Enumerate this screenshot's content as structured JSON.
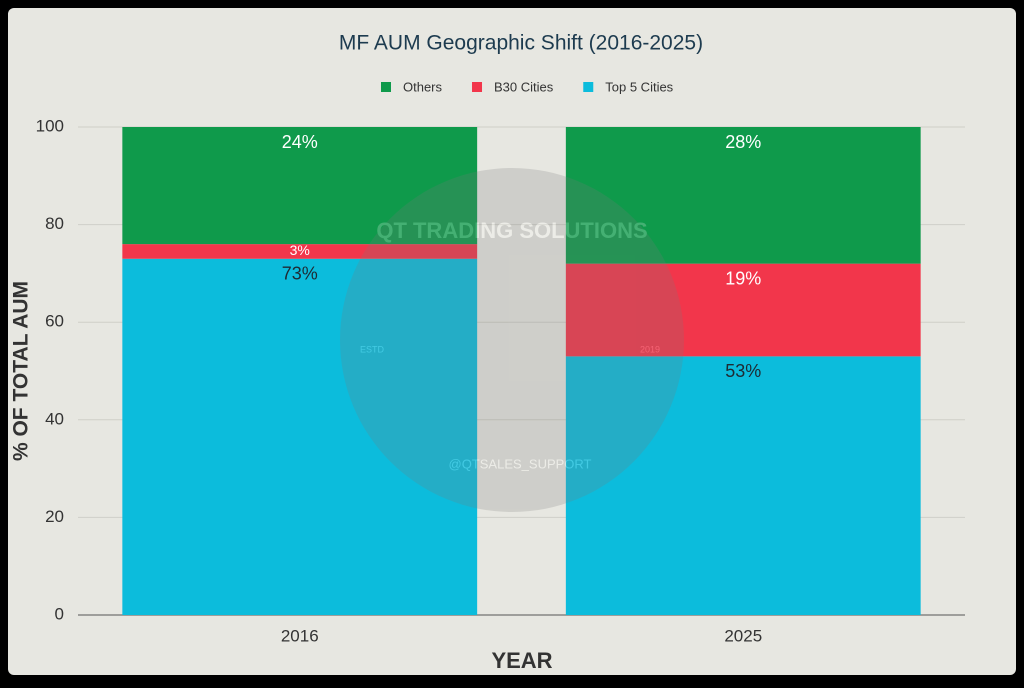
{
  "chart_data": {
    "type": "stacked_bar",
    "title": "MF AUM Geographic Shift (2016-2025)",
    "x_label": "YEAR",
    "y_label": "% OF TOTAL AUM",
    "categories": [
      "2016",
      "2025"
    ],
    "series": [
      {
        "name": "Top 5 Cities",
        "color": "#0cbcdc",
        "values": [
          73,
          53
        ],
        "value_labels": [
          "73%",
          "53%"
        ]
      },
      {
        "name": "B30 Cities",
        "color": "#f2364b",
        "values": [
          3,
          19
        ],
        "value_labels": [
          "3%",
          "19%"
        ]
      },
      {
        "name": "Others",
        "color": "#0f9a4b",
        "values": [
          24,
          28
        ],
        "value_labels": [
          "24%",
          "28%"
        ]
      }
    ],
    "ylim": [
      0,
      100
    ],
    "yticks": [
      0,
      20,
      40,
      60,
      80,
      100
    ],
    "grid": true,
    "legend": "top",
    "watermark": {
      "brand": "QT TRADING SOLUTIONS",
      "estd": "ESTD",
      "year": "2019",
      "handle": "@QTSALES_SUPPORT"
    }
  }
}
